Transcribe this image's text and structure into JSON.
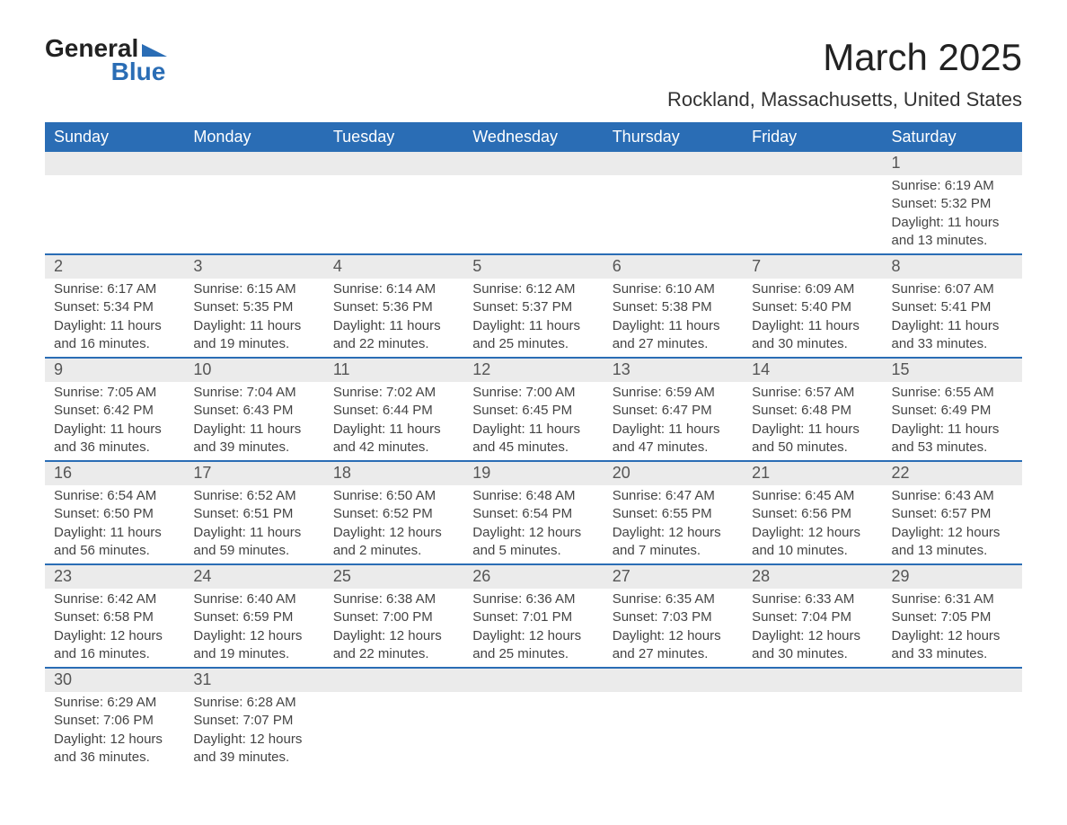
{
  "brand": {
    "name_top": "General",
    "name_bottom": "Blue",
    "flag_color": "#2a6db5"
  },
  "title": "March 2025",
  "location": "Rockland, Massachusetts, United States",
  "colors": {
    "header_bg": "#2a6db5",
    "header_text": "#ffffff",
    "daynum_bg": "#ebebeb",
    "row_border": "#2a6db5"
  },
  "weekdays": [
    "Sunday",
    "Monday",
    "Tuesday",
    "Wednesday",
    "Thursday",
    "Friday",
    "Saturday"
  ],
  "weeks": [
    [
      null,
      null,
      null,
      null,
      null,
      null,
      {
        "n": "1",
        "sunrise": "6:19 AM",
        "sunset": "5:32 PM",
        "daylight": "11 hours and 13 minutes."
      }
    ],
    [
      {
        "n": "2",
        "sunrise": "6:17 AM",
        "sunset": "5:34 PM",
        "daylight": "11 hours and 16 minutes."
      },
      {
        "n": "3",
        "sunrise": "6:15 AM",
        "sunset": "5:35 PM",
        "daylight": "11 hours and 19 minutes."
      },
      {
        "n": "4",
        "sunrise": "6:14 AM",
        "sunset": "5:36 PM",
        "daylight": "11 hours and 22 minutes."
      },
      {
        "n": "5",
        "sunrise": "6:12 AM",
        "sunset": "5:37 PM",
        "daylight": "11 hours and 25 minutes."
      },
      {
        "n": "6",
        "sunrise": "6:10 AM",
        "sunset": "5:38 PM",
        "daylight": "11 hours and 27 minutes."
      },
      {
        "n": "7",
        "sunrise": "6:09 AM",
        "sunset": "5:40 PM",
        "daylight": "11 hours and 30 minutes."
      },
      {
        "n": "8",
        "sunrise": "6:07 AM",
        "sunset": "5:41 PM",
        "daylight": "11 hours and 33 minutes."
      }
    ],
    [
      {
        "n": "9",
        "sunrise": "7:05 AM",
        "sunset": "6:42 PM",
        "daylight": "11 hours and 36 minutes."
      },
      {
        "n": "10",
        "sunrise": "7:04 AM",
        "sunset": "6:43 PM",
        "daylight": "11 hours and 39 minutes."
      },
      {
        "n": "11",
        "sunrise": "7:02 AM",
        "sunset": "6:44 PM",
        "daylight": "11 hours and 42 minutes."
      },
      {
        "n": "12",
        "sunrise": "7:00 AM",
        "sunset": "6:45 PM",
        "daylight": "11 hours and 45 minutes."
      },
      {
        "n": "13",
        "sunrise": "6:59 AM",
        "sunset": "6:47 PM",
        "daylight": "11 hours and 47 minutes."
      },
      {
        "n": "14",
        "sunrise": "6:57 AM",
        "sunset": "6:48 PM",
        "daylight": "11 hours and 50 minutes."
      },
      {
        "n": "15",
        "sunrise": "6:55 AM",
        "sunset": "6:49 PM",
        "daylight": "11 hours and 53 minutes."
      }
    ],
    [
      {
        "n": "16",
        "sunrise": "6:54 AM",
        "sunset": "6:50 PM",
        "daylight": "11 hours and 56 minutes."
      },
      {
        "n": "17",
        "sunrise": "6:52 AM",
        "sunset": "6:51 PM",
        "daylight": "11 hours and 59 minutes."
      },
      {
        "n": "18",
        "sunrise": "6:50 AM",
        "sunset": "6:52 PM",
        "daylight": "12 hours and 2 minutes."
      },
      {
        "n": "19",
        "sunrise": "6:48 AM",
        "sunset": "6:54 PM",
        "daylight": "12 hours and 5 minutes."
      },
      {
        "n": "20",
        "sunrise": "6:47 AM",
        "sunset": "6:55 PM",
        "daylight": "12 hours and 7 minutes."
      },
      {
        "n": "21",
        "sunrise": "6:45 AM",
        "sunset": "6:56 PM",
        "daylight": "12 hours and 10 minutes."
      },
      {
        "n": "22",
        "sunrise": "6:43 AM",
        "sunset": "6:57 PM",
        "daylight": "12 hours and 13 minutes."
      }
    ],
    [
      {
        "n": "23",
        "sunrise": "6:42 AM",
        "sunset": "6:58 PM",
        "daylight": "12 hours and 16 minutes."
      },
      {
        "n": "24",
        "sunrise": "6:40 AM",
        "sunset": "6:59 PM",
        "daylight": "12 hours and 19 minutes."
      },
      {
        "n": "25",
        "sunrise": "6:38 AM",
        "sunset": "7:00 PM",
        "daylight": "12 hours and 22 minutes."
      },
      {
        "n": "26",
        "sunrise": "6:36 AM",
        "sunset": "7:01 PM",
        "daylight": "12 hours and 25 minutes."
      },
      {
        "n": "27",
        "sunrise": "6:35 AM",
        "sunset": "7:03 PM",
        "daylight": "12 hours and 27 minutes."
      },
      {
        "n": "28",
        "sunrise": "6:33 AM",
        "sunset": "7:04 PM",
        "daylight": "12 hours and 30 minutes."
      },
      {
        "n": "29",
        "sunrise": "6:31 AM",
        "sunset": "7:05 PM",
        "daylight": "12 hours and 33 minutes."
      }
    ],
    [
      {
        "n": "30",
        "sunrise": "6:29 AM",
        "sunset": "7:06 PM",
        "daylight": "12 hours and 36 minutes."
      },
      {
        "n": "31",
        "sunrise": "6:28 AM",
        "sunset": "7:07 PM",
        "daylight": "12 hours and 39 minutes."
      },
      null,
      null,
      null,
      null,
      null
    ]
  ],
  "labels": {
    "sunrise": "Sunrise: ",
    "sunset": "Sunset: ",
    "daylight": "Daylight: "
  }
}
